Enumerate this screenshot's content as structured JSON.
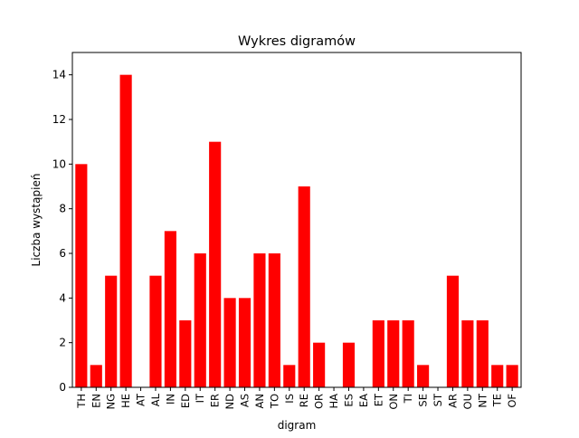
{
  "chart_data": {
    "type": "bar",
    "title": "Wykres digramów",
    "xlabel": "digram",
    "ylabel": "Liczba wystąpień",
    "categories": [
      "TH",
      "EN",
      "NG",
      "HE",
      "AT",
      "AL",
      "IN",
      "ED",
      "IT",
      "ER",
      "ND",
      "AS",
      "AN",
      "TO",
      "IS",
      "RE",
      "OR",
      "HA",
      "ES",
      "EA",
      "ET",
      "ON",
      "TI",
      "SE",
      "ST",
      "AR",
      "OU",
      "NT",
      "TE",
      "OF"
    ],
    "values": [
      10,
      1,
      5,
      14,
      0,
      5,
      7,
      3,
      6,
      11,
      4,
      4,
      6,
      6,
      1,
      9,
      2,
      0,
      2,
      0,
      3,
      3,
      3,
      1,
      0,
      5,
      3,
      3,
      1,
      1
    ],
    "ylim": [
      0,
      15
    ],
    "yticks": [
      0,
      2,
      4,
      6,
      8,
      10,
      12,
      14
    ],
    "bar_color": "#ff0000",
    "grid": false,
    "legend": "none"
  }
}
